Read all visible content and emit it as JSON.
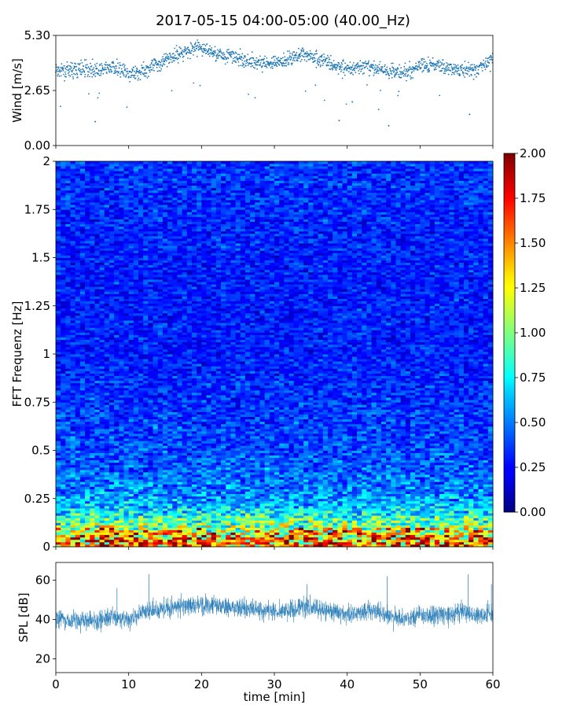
{
  "figure": {
    "title": "2017-05-15 04:00-05:00 (40.00_Hz)"
  },
  "chart_data": [
    {
      "type": "scatter",
      "panel": "wind",
      "ylabel": "Wind [m/s]",
      "xlim": [
        0,
        60
      ],
      "ylim": [
        0,
        5.3
      ],
      "yticks": [
        0,
        2.65,
        5.3
      ],
      "ytick_labels": [
        "0.00",
        "2.65",
        "5.30"
      ],
      "xticks": [
        0,
        10,
        20,
        30,
        40,
        50,
        60
      ],
      "color": "#1f77b4",
      "profile_x": [
        0,
        2,
        4,
        6,
        8,
        10,
        12,
        14,
        16,
        18,
        20,
        22,
        24,
        26,
        28,
        30,
        32,
        34,
        36,
        38,
        40,
        42,
        44,
        46,
        48,
        50,
        52,
        54,
        56,
        58,
        60
      ],
      "profile_mean": [
        3.6,
        3.6,
        3.7,
        3.6,
        3.8,
        3.4,
        3.6,
        3.9,
        4.3,
        4.6,
        4.7,
        4.4,
        4.3,
        4.1,
        4.0,
        3.9,
        4.2,
        4.4,
        4.2,
        3.9,
        3.7,
        3.8,
        3.7,
        3.6,
        3.5,
        3.8,
        3.9,
        3.7,
        3.6,
        3.7,
        4.2
      ],
      "outliers": [
        [
          5.4,
          1.15
        ],
        [
          38.9,
          1.2
        ],
        [
          45.7,
          0.95
        ],
        [
          56.8,
          1.5
        ],
        [
          40.7,
          2.1
        ]
      ]
    },
    {
      "type": "heatmap",
      "panel": "spectrogram",
      "ylabel": "FFT Frequenz [Hz]",
      "xlim": [
        0,
        60
      ],
      "ylim": [
        0,
        2
      ],
      "yticks": [
        0,
        0.25,
        0.5,
        0.75,
        1,
        1.25,
        1.5,
        1.75,
        2
      ],
      "ytick_labels": [
        "0",
        "0.25",
        "0.5",
        "0.75",
        "1",
        "1.25",
        "1.5",
        "1.75",
        "2"
      ],
      "xticks": [
        0,
        10,
        20,
        30,
        40,
        50,
        60
      ],
      "colormap": "jet",
      "colorbar": {
        "vmin": 0,
        "vmax": 2,
        "ticks": [
          0,
          0.25,
          0.5,
          0.75,
          1,
          1.25,
          1.5,
          1.75,
          2
        ],
        "tick_labels": [
          "0.00",
          "0.25",
          "0.50",
          "0.75",
          "1.00",
          "1.25",
          "1.50",
          "1.75",
          "2.00"
        ]
      },
      "freq_profile_hz": [
        0,
        0.05,
        0.1,
        0.15,
        0.2,
        0.3,
        0.5,
        0.75,
        1.0,
        1.5,
        2.0
      ],
      "freq_profile_mean": [
        1.5,
        1.3,
        1.05,
        0.85,
        0.65,
        0.5,
        0.4,
        0.35,
        0.3,
        0.3,
        0.35
      ]
    },
    {
      "type": "line",
      "panel": "spl",
      "ylabel": "SPL [dB]",
      "xlabel": "time [min]",
      "xlim": [
        0,
        60
      ],
      "ylim": [
        13,
        69
      ],
      "yticks": [
        20,
        40,
        60
      ],
      "ytick_labels": [
        "20",
        "40",
        "60"
      ],
      "xticks": [
        0,
        10,
        20,
        30,
        40,
        50,
        60
      ],
      "xtick_labels": [
        "0",
        "10",
        "20",
        "30",
        "40",
        "50",
        "60"
      ],
      "color": "#1f77b4",
      "profile_x": [
        0,
        2,
        4,
        6,
        8,
        10,
        12,
        14,
        16,
        18,
        20,
        22,
        24,
        26,
        28,
        30,
        32,
        34,
        36,
        38,
        40,
        42,
        44,
        46,
        48,
        50,
        52,
        54,
        56,
        58,
        60
      ],
      "profile_mean": [
        40,
        39,
        40,
        39,
        42,
        39,
        44,
        45,
        46,
        47,
        48,
        47,
        46,
        46,
        45,
        44,
        44,
        47,
        45,
        44,
        43,
        44,
        44,
        41,
        41,
        42,
        42,
        42,
        44,
        41,
        44
      ],
      "spikes": [
        [
          12.8,
          63
        ],
        [
          45.5,
          62
        ],
        [
          56.6,
          63
        ],
        [
          8.4,
          56
        ],
        [
          34.5,
          58
        ],
        [
          59.8,
          58
        ]
      ]
    }
  ]
}
